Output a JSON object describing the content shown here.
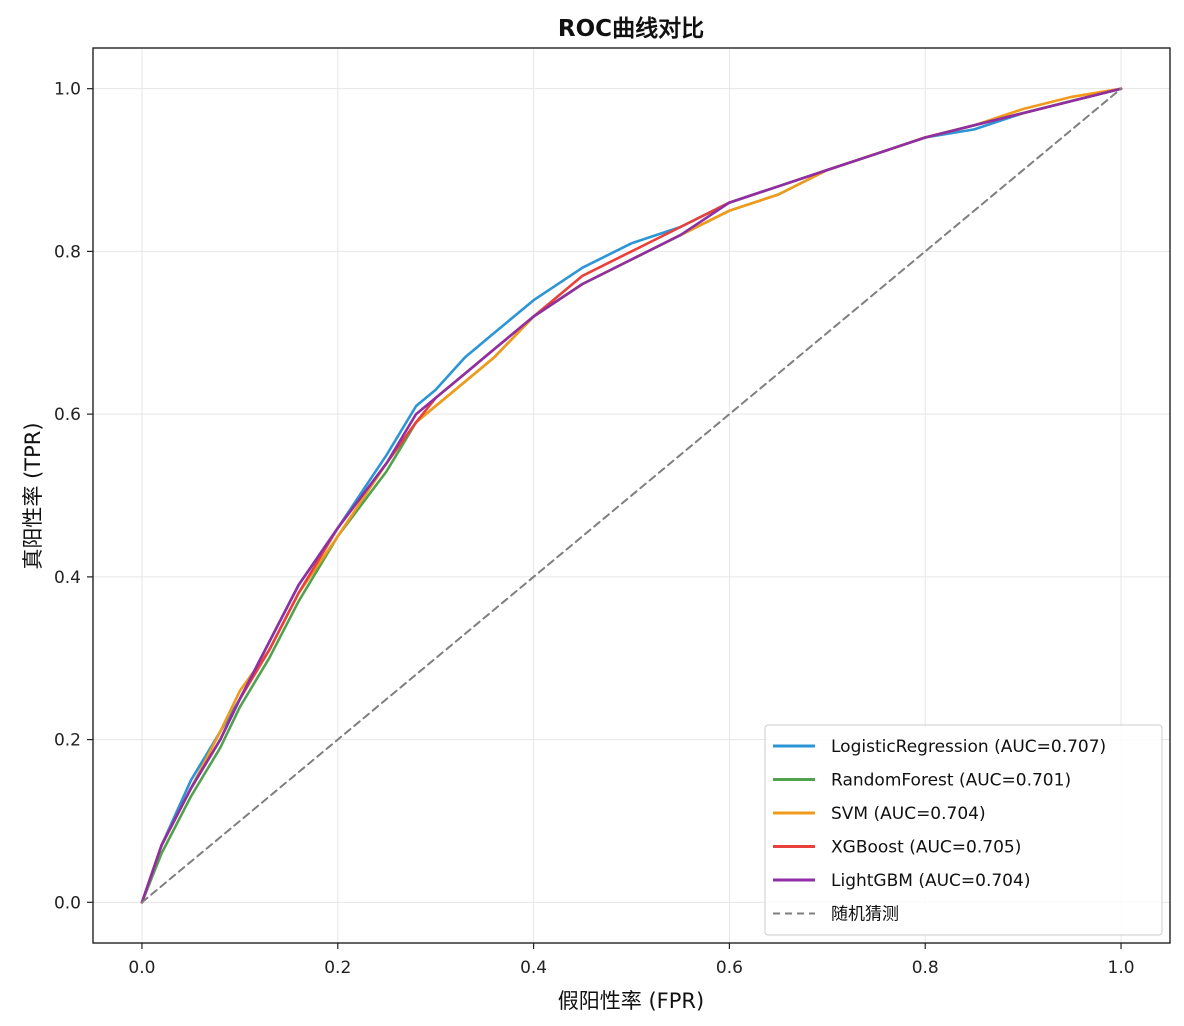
{
  "chart_data": {
    "type": "line",
    "title": "ROC曲线对比",
    "xlabel": "假阳性率 (FPR)",
    "ylabel": "真阳性率 (TPR)",
    "xlim": [
      -0.05,
      1.05
    ],
    "ylim": [
      -0.05,
      1.05
    ],
    "xticks": [
      "0.0",
      "0.2",
      "0.4",
      "0.6",
      "0.8",
      "1.0"
    ],
    "yticks": [
      "0.0",
      "0.2",
      "0.4",
      "0.6",
      "0.8",
      "1.0"
    ],
    "grid": true,
    "legend_position": "lower-right",
    "series": [
      {
        "name": "LogisticRegression (AUC=0.707)",
        "color": "#2b95d6",
        "x": [
          0.0,
          0.02,
          0.05,
          0.08,
          0.1,
          0.13,
          0.16,
          0.2,
          0.25,
          0.28,
          0.3,
          0.33,
          0.36,
          0.4,
          0.45,
          0.5,
          0.55,
          0.6,
          0.65,
          0.7,
          0.75,
          0.8,
          0.85,
          0.9,
          0.95,
          1.0
        ],
        "y": [
          0.0,
          0.07,
          0.15,
          0.21,
          0.25,
          0.32,
          0.39,
          0.46,
          0.55,
          0.61,
          0.63,
          0.67,
          0.7,
          0.74,
          0.78,
          0.81,
          0.83,
          0.86,
          0.88,
          0.9,
          0.92,
          0.94,
          0.95,
          0.97,
          0.985,
          1.0
        ]
      },
      {
        "name": "RandomForest (AUC=0.701)",
        "color": "#4fa34f",
        "x": [
          0.0,
          0.02,
          0.05,
          0.08,
          0.1,
          0.13,
          0.16,
          0.2,
          0.25,
          0.28,
          0.3,
          0.33,
          0.36,
          0.4,
          0.45,
          0.5,
          0.55,
          0.6,
          0.65,
          0.7,
          0.75,
          0.8,
          0.85,
          0.9,
          0.95,
          1.0
        ],
        "y": [
          0.0,
          0.06,
          0.13,
          0.19,
          0.24,
          0.3,
          0.37,
          0.45,
          0.53,
          0.59,
          0.61,
          0.64,
          0.67,
          0.72,
          0.76,
          0.79,
          0.82,
          0.85,
          0.87,
          0.9,
          0.92,
          0.94,
          0.955,
          0.97,
          0.985,
          1.0
        ]
      },
      {
        "name": "SVM (AUC=0.704)",
        "color": "#f29a1a",
        "x": [
          0.0,
          0.02,
          0.05,
          0.08,
          0.1,
          0.13,
          0.16,
          0.2,
          0.25,
          0.28,
          0.3,
          0.33,
          0.36,
          0.4,
          0.45,
          0.5,
          0.55,
          0.6,
          0.65,
          0.7,
          0.75,
          0.8,
          0.85,
          0.9,
          0.95,
          1.0
        ],
        "y": [
          0.0,
          0.07,
          0.14,
          0.21,
          0.26,
          0.31,
          0.38,
          0.45,
          0.54,
          0.59,
          0.61,
          0.64,
          0.67,
          0.72,
          0.76,
          0.79,
          0.82,
          0.85,
          0.87,
          0.9,
          0.92,
          0.94,
          0.955,
          0.975,
          0.99,
          1.0
        ]
      },
      {
        "name": "XGBoost (AUC=0.705)",
        "color": "#e8413c",
        "x": [
          0.0,
          0.02,
          0.05,
          0.08,
          0.1,
          0.13,
          0.16,
          0.2,
          0.25,
          0.28,
          0.3,
          0.33,
          0.36,
          0.4,
          0.45,
          0.5,
          0.55,
          0.6,
          0.65,
          0.7,
          0.75,
          0.8,
          0.85,
          0.9,
          0.95,
          1.0
        ],
        "y": [
          0.0,
          0.07,
          0.14,
          0.2,
          0.25,
          0.31,
          0.38,
          0.46,
          0.54,
          0.59,
          0.62,
          0.65,
          0.68,
          0.72,
          0.77,
          0.8,
          0.83,
          0.86,
          0.88,
          0.9,
          0.92,
          0.94,
          0.955,
          0.97,
          0.985,
          1.0
        ]
      },
      {
        "name": "LightGBM (AUC=0.704)",
        "color": "#8e2fa3",
        "x": [
          0.0,
          0.02,
          0.05,
          0.08,
          0.1,
          0.13,
          0.16,
          0.2,
          0.25,
          0.28,
          0.3,
          0.33,
          0.36,
          0.4,
          0.45,
          0.5,
          0.55,
          0.6,
          0.65,
          0.7,
          0.75,
          0.8,
          0.85,
          0.9,
          0.95,
          1.0
        ],
        "y": [
          0.0,
          0.07,
          0.14,
          0.2,
          0.25,
          0.32,
          0.39,
          0.46,
          0.54,
          0.6,
          0.62,
          0.65,
          0.68,
          0.72,
          0.76,
          0.79,
          0.82,
          0.86,
          0.88,
          0.9,
          0.92,
          0.94,
          0.955,
          0.97,
          0.985,
          1.0
        ]
      },
      {
        "name": "随机猜测",
        "color": "#7f7f7f",
        "dashed": true,
        "x": [
          0.0,
          1.0
        ],
        "y": [
          0.0,
          1.0
        ]
      }
    ]
  }
}
